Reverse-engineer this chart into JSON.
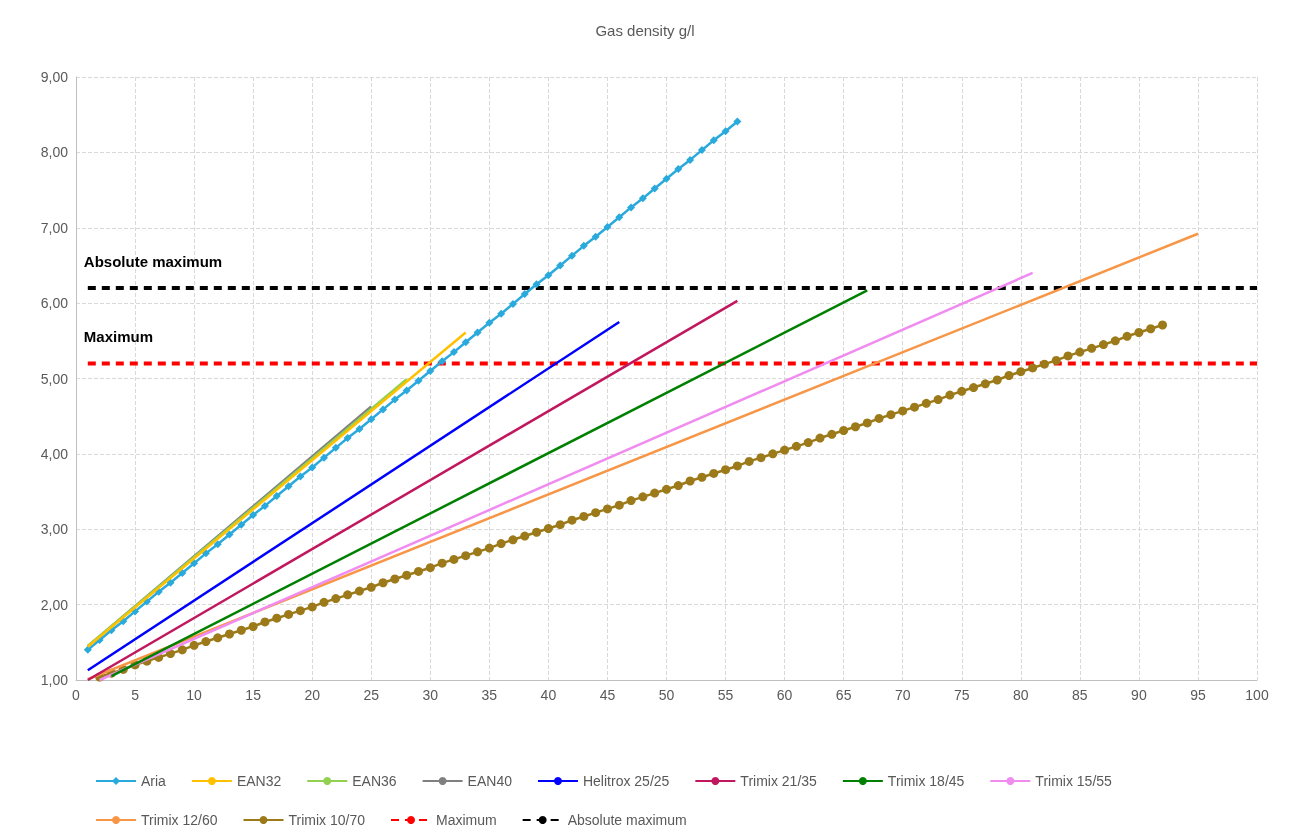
{
  "chart_data": {
    "type": "line",
    "title": "Gas density g/l",
    "xlim": [
      0,
      100
    ],
    "xticks": [
      0,
      5,
      10,
      15,
      20,
      25,
      30,
      35,
      40,
      45,
      50,
      55,
      60,
      65,
      70,
      75,
      80,
      85,
      90,
      95,
      100
    ],
    "ylim": [
      1,
      9
    ],
    "yticks": [
      {
        "value": 1,
        "label": "1,00"
      },
      {
        "value": 2,
        "label": "2,00"
      },
      {
        "value": 3,
        "label": "3,00"
      },
      {
        "value": 4,
        "label": "4,00"
      },
      {
        "value": 5,
        "label": "5,00"
      },
      {
        "value": 6,
        "label": "6,00"
      },
      {
        "value": 7,
        "label": "7,00"
      },
      {
        "value": 8,
        "label": "8,00"
      },
      {
        "value": 9,
        "label": "9,00"
      }
    ],
    "grid": true,
    "legend": "bottom",
    "marker": "none",
    "line_style": "solid",
    "annotations": [
      {
        "text": "Absolute maximum",
        "x": 1,
        "y": 6.2
      },
      {
        "text": "Maximum",
        "x": 1,
        "y": 5.2
      }
    ],
    "series": [
      {
        "name": "Aria",
        "color": "#2aa9dc",
        "marker": "diamond",
        "x": [
          1,
          2,
          3,
          4,
          5,
          6,
          7,
          8,
          9,
          10,
          11,
          12,
          13,
          14,
          15,
          16,
          17,
          18,
          19,
          20,
          21,
          22,
          23,
          24,
          25,
          26,
          27,
          28,
          29,
          30,
          31,
          32,
          33,
          34,
          35,
          36,
          37,
          38,
          39,
          40,
          41,
          42,
          43,
          44,
          45,
          46,
          47,
          48,
          49,
          50,
          51,
          52,
          53,
          54,
          55,
          56
        ],
        "values": [
          1.4,
          1.53,
          1.66,
          1.78,
          1.91,
          2.04,
          2.17,
          2.29,
          2.42,
          2.55,
          2.68,
          2.8,
          2.93,
          3.06,
          3.19,
          3.31,
          3.44,
          3.57,
          3.7,
          3.82,
          3.95,
          4.08,
          4.21,
          4.33,
          4.46,
          4.59,
          4.72,
          4.84,
          4.97,
          5.1,
          5.23,
          5.35,
          5.48,
          5.61,
          5.74,
          5.86,
          5.99,
          6.12,
          6.25,
          6.37,
          6.5,
          6.63,
          6.76,
          6.88,
          7.01,
          7.14,
          7.27,
          7.39,
          7.52,
          7.65,
          7.78,
          7.9,
          8.03,
          8.16,
          8.28,
          8.41
        ]
      },
      {
        "name": "EAN32",
        "color": "#ffc000",
        "x": [
          1,
          33
        ],
        "values": [
          1.44,
          5.61
        ]
      },
      {
        "name": "EAN36",
        "color": "#92d050",
        "x": [
          1,
          28
        ],
        "values": [
          1.45,
          4.99
        ]
      },
      {
        "name": "EAN40",
        "color": "#808080",
        "x": [
          1,
          25
        ],
        "values": [
          1.45,
          4.63
        ]
      },
      {
        "name": "Helitrox 25/25",
        "color": "#0000ff",
        "x": [
          1,
          46
        ],
        "values": [
          1.13,
          5.75
        ]
      },
      {
        "name": "Trimix 21/35",
        "color": "#c0175e",
        "x": [
          1,
          56
        ],
        "values": [
          1.0,
          6.03
        ]
      },
      {
        "name": "Trimix 18/45",
        "color": "#008000",
        "x": [
          3,
          67
        ],
        "values": [
          1.05,
          6.17
        ]
      },
      {
        "name": "Trimix 15/55",
        "color": "#f08cf0",
        "x": [
          2,
          81
        ],
        "values": [
          1.0,
          6.4
        ]
      },
      {
        "name": "Trimix 12/60",
        "color": "#f79646",
        "x": [
          1,
          95
        ],
        "values": [
          1.01,
          6.92
        ]
      },
      {
        "name": "Trimix 10/70",
        "color": "#9c7a1a",
        "marker": "circle",
        "x": [
          2,
          3,
          4,
          5,
          6,
          7,
          8,
          9,
          10,
          11,
          12,
          13,
          14,
          15,
          16,
          17,
          18,
          19,
          20,
          21,
          22,
          23,
          24,
          25,
          26,
          27,
          28,
          29,
          30,
          31,
          32,
          33,
          34,
          35,
          36,
          37,
          38,
          39,
          40,
          41,
          42,
          43,
          44,
          45,
          46,
          47,
          48,
          49,
          50,
          51,
          52,
          53,
          54,
          55,
          56,
          57,
          58,
          59,
          60,
          61,
          62,
          63,
          64,
          65,
          66,
          67,
          68,
          69,
          70,
          71,
          72,
          73,
          74,
          75,
          76,
          77,
          78,
          79,
          80,
          81,
          82,
          83,
          84,
          85,
          86,
          87,
          88,
          89,
          90,
          91,
          92
        ],
        "values": [
          1.04,
          1.09,
          1.14,
          1.2,
          1.25,
          1.3,
          1.35,
          1.4,
          1.46,
          1.51,
          1.56,
          1.61,
          1.66,
          1.71,
          1.77,
          1.82,
          1.87,
          1.92,
          1.97,
          2.03,
          2.08,
          2.13,
          2.18,
          2.23,
          2.29,
          2.34,
          2.39,
          2.44,
          2.49,
          2.55,
          2.6,
          2.65,
          2.7,
          2.75,
          2.81,
          2.86,
          2.91,
          2.96,
          3.01,
          3.06,
          3.12,
          3.17,
          3.22,
          3.27,
          3.32,
          3.38,
          3.43,
          3.48,
          3.53,
          3.58,
          3.64,
          3.69,
          3.74,
          3.79,
          3.84,
          3.9,
          3.95,
          4.0,
          4.05,
          4.1,
          4.15,
          4.21,
          4.26,
          4.31,
          4.36,
          4.41,
          4.47,
          4.52,
          4.57,
          4.62,
          4.67,
          4.72,
          4.78,
          4.83,
          4.88,
          4.93,
          4.98,
          5.04,
          5.09,
          5.14,
          5.19,
          5.24,
          5.3,
          5.35,
          5.4,
          5.45,
          5.5,
          5.56,
          5.61,
          5.66,
          5.71
        ]
      },
      {
        "name": "Maximum",
        "color": "#ff0000",
        "line_style": "dashed",
        "x": [
          1,
          100
        ],
        "values": [
          5.2,
          5.2
        ]
      },
      {
        "name": "Absolute maximum",
        "color": "#000000",
        "line_style": "dashed",
        "x": [
          1,
          100
        ],
        "values": [
          6.2,
          6.2
        ]
      }
    ]
  }
}
